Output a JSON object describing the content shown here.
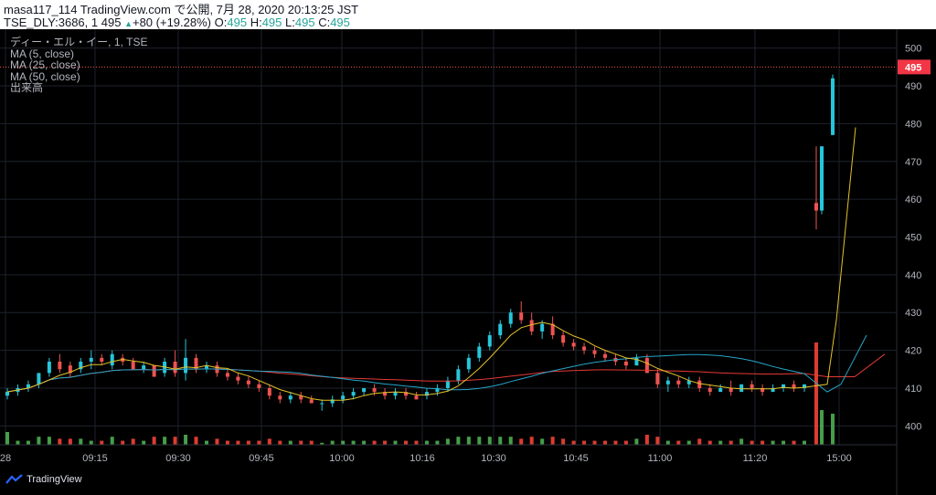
{
  "header": {
    "line1": "masa117_114 TradingView.com で公開, 7月 28, 2020 20:13:25 JST",
    "symbol": "TSE_DLY:3686, 1",
    "price": "495",
    "arrow": "▲",
    "change": "+80 (+19.28%)",
    "o_label": "O:",
    "o_value": "495",
    "h_label": "H:",
    "h_value": "495",
    "l_label": "L:",
    "l_value": "495",
    "c_label": "C:",
    "c_value": "495"
  },
  "legend": {
    "title": "ディー・エル・イー, 1, TSE",
    "ma5": "MA (5, close)",
    "ma25": "MA (25, close)",
    "ma50": "MA (50, close)",
    "volume": "出来高"
  },
  "footer": {
    "brand": "TradingView"
  },
  "colors": {
    "up": "#26c6da",
    "down": "#ef5350",
    "vol_up": "#4caf50",
    "vol_down": "#f44336",
    "ma5": "#e6c229",
    "ma25": "#26a6c9",
    "ma50": "#e53935",
    "grid": "#1e222d",
    "axis_text": "#b2b5be",
    "last_price_bg": "#f23645"
  },
  "chart_data": {
    "type": "candlestick",
    "ylim": [
      395,
      505
    ],
    "y_ticks": [
      "500",
      "490",
      "480",
      "470",
      "460",
      "450",
      "440",
      "430",
      "420",
      "410",
      "400"
    ],
    "x_ticks": [
      "28",
      "09:15",
      "09:30",
      "09:45",
      "10:00",
      "10:16",
      "10:30",
      "10:45",
      "11:00",
      "11:20",
      "15:00"
    ],
    "last_price": "495",
    "candles": [
      [
        408,
        410,
        407,
        409
      ],
      [
        409,
        411,
        408,
        410
      ],
      [
        410,
        412,
        409,
        411
      ],
      [
        411,
        414,
        410,
        414
      ],
      [
        414,
        418,
        413,
        417
      ],
      [
        417,
        419,
        414,
        415
      ],
      [
        416,
        417,
        413,
        414
      ],
      [
        415,
        418,
        414,
        417
      ],
      [
        417,
        420,
        415,
        418
      ],
      [
        418,
        419,
        416,
        417
      ],
      [
        416,
        420,
        415,
        419
      ],
      [
        418,
        419,
        416,
        417
      ],
      [
        417,
        418,
        415,
        415
      ],
      [
        415,
        417,
        414,
        416
      ],
      [
        416,
        416,
        413,
        413
      ],
      [
        414,
        418,
        413,
        417
      ],
      [
        417,
        420,
        413,
        414
      ],
      [
        414,
        423,
        412,
        418
      ],
      [
        418,
        419,
        414,
        415
      ],
      [
        415,
        417,
        414,
        416
      ],
      [
        416,
        417,
        413,
        414
      ],
      [
        414,
        415,
        412,
        413
      ],
      [
        413,
        414,
        411,
        412
      ],
      [
        412,
        413,
        410,
        411
      ],
      [
        411,
        412,
        409,
        410
      ],
      [
        410,
        411,
        407,
        408
      ],
      [
        408,
        409,
        406,
        407
      ],
      [
        407,
        409,
        406,
        408
      ],
      [
        408,
        409,
        406,
        407
      ],
      [
        407,
        408,
        406,
        406
      ],
      [
        406,
        407,
        404,
        406
      ],
      [
        406,
        408,
        405,
        407
      ],
      [
        407,
        409,
        406,
        408
      ],
      [
        408,
        410,
        407,
        409
      ],
      [
        409,
        410,
        408,
        410
      ],
      [
        410,
        411,
        408,
        409
      ],
      [
        409,
        410,
        407,
        408
      ],
      [
        408,
        410,
        407,
        409
      ],
      [
        409,
        410,
        407,
        408
      ],
      [
        408,
        409,
        407,
        407
      ],
      [
        408,
        410,
        407,
        409
      ],
      [
        409,
        411,
        408,
        410
      ],
      [
        410,
        413,
        409,
        412
      ],
      [
        412,
        416,
        411,
        415
      ],
      [
        415,
        419,
        414,
        418
      ],
      [
        418,
        422,
        417,
        421
      ],
      [
        421,
        425,
        420,
        424
      ],
      [
        424,
        428,
        423,
        427
      ],
      [
        427,
        431,
        426,
        430
      ],
      [
        430,
        433,
        427,
        428
      ],
      [
        428,
        430,
        424,
        425
      ],
      [
        425,
        428,
        423,
        427
      ],
      [
        427,
        429,
        423,
        424
      ],
      [
        424,
        425,
        421,
        422
      ],
      [
        422,
        423,
        420,
        421
      ],
      [
        421,
        422,
        419,
        420
      ],
      [
        420,
        421,
        418,
        419
      ],
      [
        419,
        420,
        417,
        418
      ],
      [
        418,
        419,
        416,
        417
      ],
      [
        417,
        418,
        415,
        416
      ],
      [
        416,
        419,
        416,
        418
      ],
      [
        418,
        419,
        414,
        414
      ],
      [
        414,
        415,
        410,
        411
      ],
      [
        411,
        413,
        409,
        412
      ],
      [
        412,
        413,
        410,
        411
      ],
      [
        411,
        413,
        410,
        412
      ],
      [
        412,
        413,
        409,
        410
      ],
      [
        410,
        411,
        408,
        409
      ],
      [
        409,
        411,
        409,
        410
      ],
      [
        410,
        412,
        408,
        409
      ],
      [
        409,
        411,
        409,
        411
      ],
      [
        411,
        412,
        409,
        410
      ],
      [
        410,
        411,
        408,
        409
      ],
      [
        409,
        411,
        409,
        410
      ],
      [
        410,
        411,
        409,
        411
      ],
      [
        411,
        412,
        409,
        410
      ],
      [
        410,
        411,
        409,
        411
      ],
      [
        459,
        474,
        452,
        457
      ],
      [
        457,
        474,
        456,
        474
      ],
      [
        477,
        493,
        477,
        492
      ]
    ],
    "volume_label": "出来高"
  }
}
